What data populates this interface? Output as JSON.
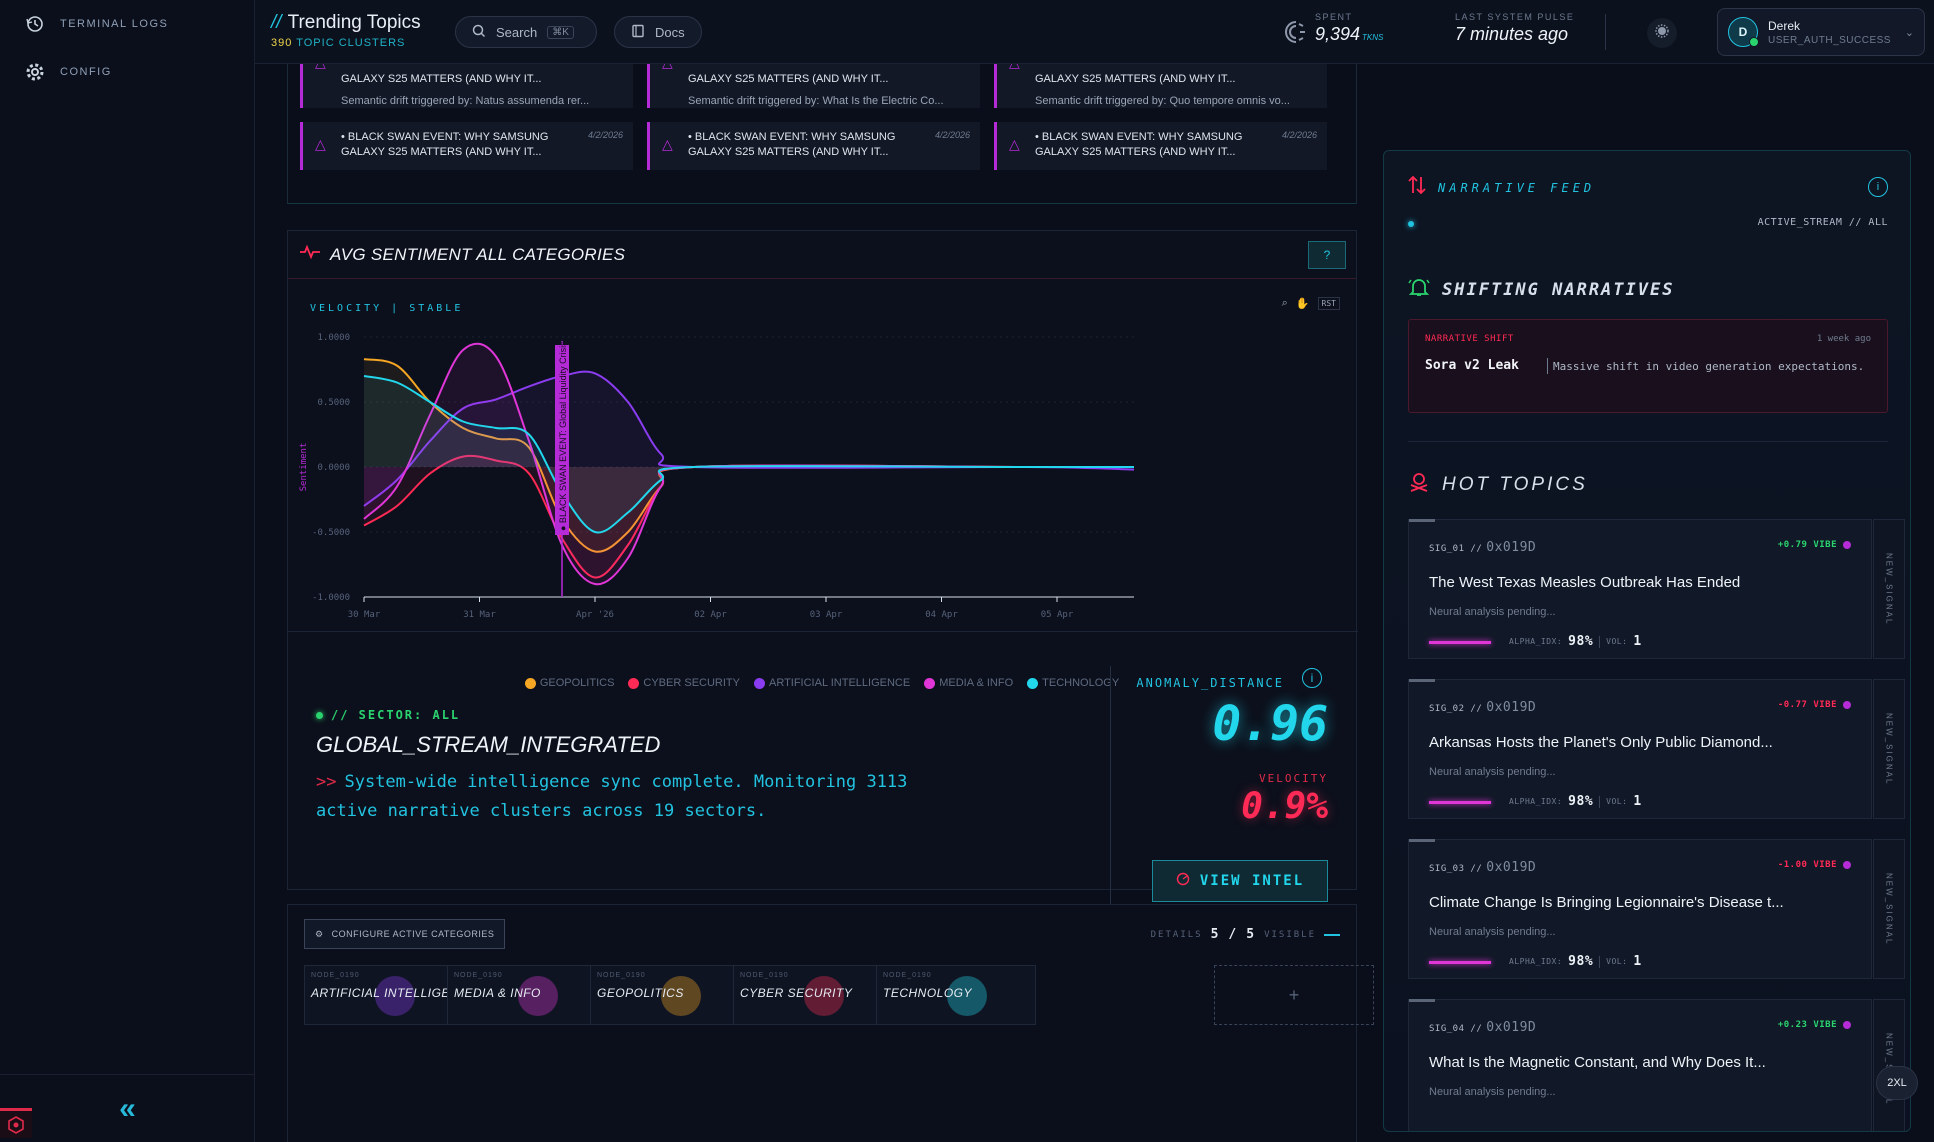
{
  "sidebar": {
    "items": [
      {
        "label": "TERMINAL LOGS",
        "icon": "history-icon"
      },
      {
        "label": "CONFIG",
        "icon": "gear-icon"
      }
    ],
    "collapse_icon": "double-chevron-left-icon"
  },
  "header": {
    "title": "Trending Topics",
    "cluster_count": "390",
    "cluster_label": "TOPIC CLUSTERS",
    "search_label": "Search",
    "search_shortcut": "⌘K",
    "docs_label": "Docs",
    "spent_label": "SPENT",
    "spent_value": "9,394",
    "spent_unit": "TKNS",
    "pulse_label": "LAST SYSTEM PULSE",
    "pulse_value": "7 minutes ago",
    "user": {
      "initial": "D",
      "name": "Derek",
      "status": "USER_AUTH_SUCCESS"
    }
  },
  "alerts": [
    {
      "title": "GALAXY S25 MATTERS (AND WHY IT...",
      "desc": "Semantic drift triggered by: Natus assumenda rer..."
    },
    {
      "title": "GALAXY S25 MATTERS (AND WHY IT...",
      "desc": "Semantic drift triggered by: What Is the Electric Co..."
    },
    {
      "title": "GALAXY S25 MATTERS (AND WHY IT...",
      "desc": "Semantic drift triggered by: Quo tempore omnis vo..."
    },
    {
      "title": "• BLACK SWAN EVENT: WHY SAMSUNG GALAXY S25 MATTERS (AND WHY IT...",
      "date": "4/2/2026"
    },
    {
      "title": "• BLACK SWAN EVENT: WHY SAMSUNG GALAXY S25 MATTERS (AND WHY IT...",
      "date": "4/2/2026"
    },
    {
      "title": "• BLACK SWAN EVENT: WHY SAMSUNG GALAXY S25 MATTERS (AND WHY IT...",
      "date": "4/2/2026"
    }
  ],
  "chart_panel": {
    "title": "AVG SENTIMENT ALL CATEGORIES",
    "velocity_label": "VELOCITY | STABLE",
    "reset_label": "RST"
  },
  "chart_data": {
    "type": "line",
    "ylabel": "Sentiment",
    "ylim": [
      -1,
      1
    ],
    "yticks": [
      "1.0000",
      "0.5000",
      "0.0000",
      "-0.5000",
      "-1.0000"
    ],
    "x_ticks": [
      "30 Mar",
      "31 Mar",
      "Apr '26",
      "02 Apr",
      "03 Apr",
      "04 Apr",
      "05 Apr"
    ],
    "annotation": {
      "text": "● BLACK SWAN EVENT: Global Liquidity Crisis",
      "x": 1.8
    },
    "grid": true,
    "legend_position": "bottom",
    "series": [
      {
        "name": "GEOPOLITICS",
        "color": "#f5a623",
        "x": [
          0,
          0.3,
          0.6,
          0.9,
          1.2,
          1.5,
          1.8,
          2.1,
          2.4,
          2.7,
          3,
          6,
          7
        ],
        "values": [
          0.83,
          0.78,
          0.5,
          0.3,
          0.22,
          0.15,
          -0.4,
          -0.65,
          -0.5,
          -0.15,
          0,
          0,
          0
        ]
      },
      {
        "name": "CYBER SECURITY",
        "color": "#ff2a55",
        "x": [
          0,
          0.3,
          0.6,
          0.9,
          1.2,
          1.5,
          1.8,
          2.1,
          2.4,
          2.7,
          3,
          6,
          7
        ],
        "values": [
          -0.45,
          -0.3,
          -0.05,
          0.08,
          0.05,
          -0.05,
          -0.55,
          -0.85,
          -0.6,
          -0.15,
          0,
          0,
          0
        ]
      },
      {
        "name": "ARTIFICIAL INTELLIGENCE",
        "color": "#8a3cf0",
        "x": [
          0,
          0.3,
          0.6,
          0.9,
          1.2,
          1.5,
          1.8,
          2.1,
          2.4,
          2.7,
          3,
          6,
          7
        ],
        "values": [
          -0.3,
          -0.1,
          0.2,
          0.45,
          0.52,
          0.62,
          0.7,
          0.72,
          0.5,
          0.1,
          0,
          0,
          -0.02
        ]
      },
      {
        "name": "MEDIA & INFO",
        "color": "#e036d8",
        "x": [
          0,
          0.3,
          0.6,
          0.9,
          1.2,
          1.5,
          1.8,
          2.1,
          2.4,
          2.7,
          3,
          6,
          7
        ],
        "values": [
          -0.4,
          -0.15,
          0.4,
          0.9,
          0.85,
          0.2,
          -0.6,
          -0.9,
          -0.7,
          -0.15,
          0,
          0,
          0
        ]
      },
      {
        "name": "TECHNOLOGY",
        "color": "#22d7ec",
        "x": [
          0,
          0.3,
          0.6,
          0.9,
          1.2,
          1.5,
          1.8,
          2.1,
          2.4,
          2.7,
          3,
          6,
          7
        ],
        "values": [
          0.7,
          0.65,
          0.5,
          0.35,
          0.3,
          0.25,
          -0.2,
          -0.5,
          -0.35,
          -0.1,
          0,
          0,
          0
        ]
      }
    ]
  },
  "sector": {
    "label": "// SECTOR: ALL",
    "title": "GLOBAL_STREAM_INTEGRATED",
    "desc": "System-wide intelligence sync complete. Monitoring 3113 active narrative clusters across 19 sectors.",
    "prompt": ">>"
  },
  "metrics": {
    "anomaly_label": "ANOMALY_DISTANCE",
    "anomaly_value": "0.96",
    "velocity_label": "VELOCITY",
    "velocity_value": "0.9%",
    "intel_button": "VIEW INTEL"
  },
  "categories": {
    "config_label": "CONFIGURE ACTIVE CATEGORIES",
    "details_label": "DETAILS",
    "visible_count": "5",
    "total_count": "5",
    "visible_label": "VISIBLE",
    "items": [
      {
        "node": "NODE_0190",
        "name": "ARTIFICIAL INTELLIGENCE",
        "color": "#8a3cf0"
      },
      {
        "node": "NODE_0190",
        "name": "MEDIA & INFO",
        "color": "#e036d8"
      },
      {
        "node": "NODE_0190",
        "name": "GEOPOLITICS",
        "color": "#f5a623"
      },
      {
        "node": "NODE_0190",
        "name": "CYBER SECURITY",
        "color": "#ff2a55"
      },
      {
        "node": "NODE_0190",
        "name": "TECHNOLOGY",
        "color": "#22d7ec"
      }
    ],
    "add_label": "+"
  },
  "feed": {
    "title": "NARRATIVE FEED",
    "stream_tag": "ACTIVE_STREAM // ALL",
    "shift_title": "SHIFTING NARRATIVES",
    "shift_card": {
      "tag": "NARRATIVE SHIFT",
      "time": "1 week ago",
      "name": "Sora v2 Leak",
      "desc": "Massive shift in video generation expectations."
    },
    "hot_title": "HOT TOPICS"
  },
  "topics": [
    {
      "sig": "SIG_01 //",
      "hex": "0x019D",
      "vibe": "+0.79 VIBE",
      "vibe_color": "#2bd36f",
      "title": "The West Texas Measles Outbreak Has Ended",
      "sub": "Neural analysis pending...",
      "alpha_label": "ALPHA_IDX:",
      "alpha": "98%",
      "vol_label": "VOL:",
      "vol": "1",
      "tab": "NEW_SIGNAL"
    },
    {
      "sig": "SIG_02 //",
      "hex": "0x019D",
      "vibe": "-0.77 VIBE",
      "vibe_color": "#ff2a55",
      "title": "Arkansas Hosts the Planet's Only Public Diamond...",
      "sub": "Neural analysis pending...",
      "alpha_label": "ALPHA_IDX:",
      "alpha": "98%",
      "vol_label": "VOL:",
      "vol": "1",
      "tab": "NEW_SIGNAL"
    },
    {
      "sig": "SIG_03 //",
      "hex": "0x019D",
      "vibe": "-1.00 VIBE",
      "vibe_color": "#ff2a55",
      "title": "Climate Change Is Bringing Legionnaire's Disease t...",
      "sub": "Neural analysis pending...",
      "alpha_label": "ALPHA_IDX:",
      "alpha": "98%",
      "vol_label": "VOL:",
      "vol": "1",
      "tab": "NEW_SIGNAL"
    },
    {
      "sig": "SIG_04 //",
      "hex": "0x019D",
      "vibe": "+0.23 VIBE",
      "vibe_color": "#2bd36f",
      "title": "What Is the Magnetic Constant, and Why Does It...",
      "sub": "Neural analysis pending...",
      "tab": "NEW_SIGNAL"
    }
  ],
  "zoom_chip": "2XL"
}
